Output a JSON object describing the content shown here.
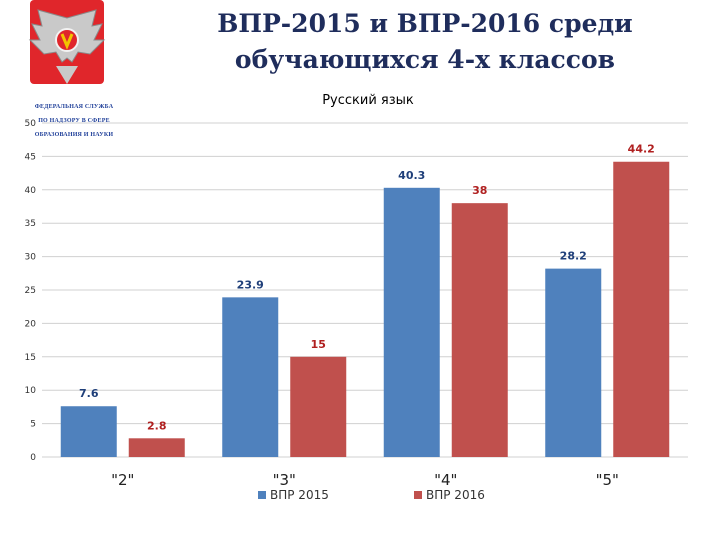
{
  "page_title": {
    "line1": "ВПР-2015 и ВПР-2016 среди",
    "line2": "обучающихся 4-х классов"
  },
  "logo": {
    "org_lines": [
      "ФЕДЕРАЛЬНАЯ СЛУЖБА",
      "ПО НАДЗОРУ В СФЕРЕ",
      "ОБРАЗОВАНИЯ И НАУКИ"
    ],
    "colors": {
      "shield": "#e0262b",
      "eagle": "#c9c9c9",
      "text": "#1f3f99"
    }
  },
  "chart_data": {
    "type": "bar",
    "title": "Русский язык",
    "xlabel": "",
    "ylabel": "",
    "categories": [
      "\"2\"",
      "\"3\"",
      "\"4\"",
      "\"5\""
    ],
    "series": [
      {
        "name": "ВПР 2015",
        "color": "#4f81bd",
        "label_color": "#1f3f79",
        "values": [
          7.6,
          23.9,
          40.3,
          28.2
        ]
      },
      {
        "name": "ВПР 2016",
        "color": "#c0504d",
        "label_color": "#b02020",
        "values": [
          2.8,
          15,
          38,
          44.2
        ]
      }
    ],
    "ylim": [
      0,
      50
    ],
    "yticks": [
      0,
      5,
      10,
      15,
      20,
      25,
      30,
      35,
      40,
      45,
      50
    ],
    "grid": true,
    "legend_position": "bottom"
  }
}
